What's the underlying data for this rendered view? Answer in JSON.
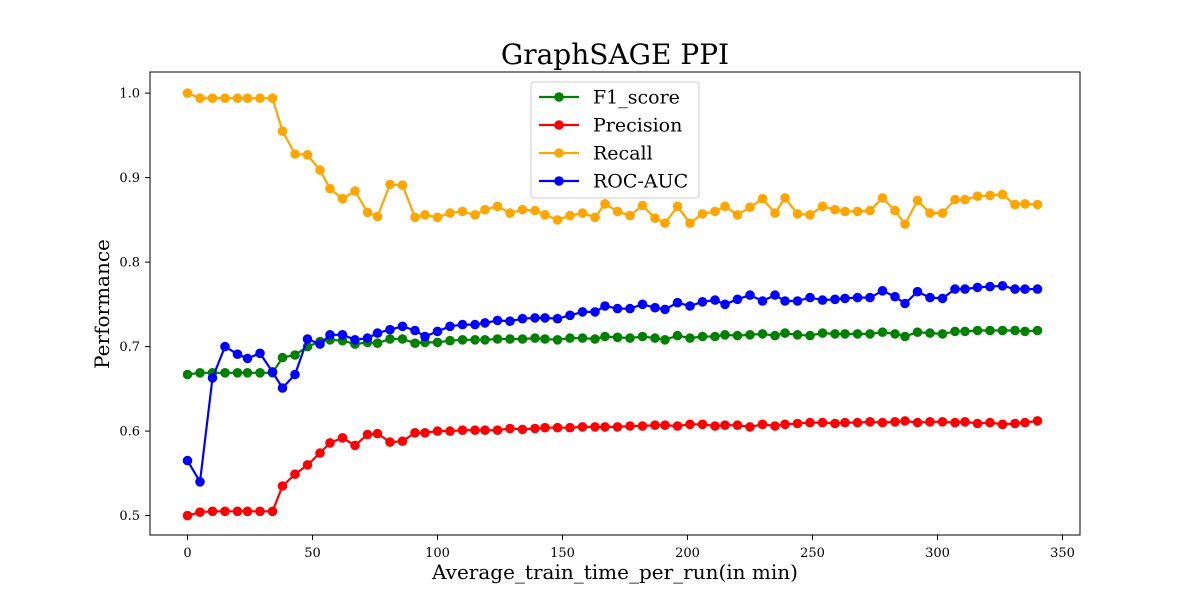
{
  "chart_data": {
    "type": "line",
    "title": "GraphSAGE PPI",
    "xlabel": "Average_train_time_per_run(in min)",
    "ylabel": "Performance",
    "xlim": [
      -15,
      357
    ],
    "ylim": [
      0.477,
      1.025
    ],
    "xticks": [
      0,
      50,
      100,
      150,
      200,
      250,
      300,
      350
    ],
    "xtick_labels": [
      "0",
      "50",
      "100",
      "150",
      "200",
      "250",
      "300",
      "350"
    ],
    "yticks": [
      0.5,
      0.6,
      0.7,
      0.8,
      0.9,
      1.0
    ],
    "ytick_labels": [
      "0.5",
      "0.6",
      "0.7",
      "0.8",
      "0.9",
      "1.0"
    ],
    "grid": false,
    "legend_position": "top-center",
    "x": [
      0,
      5,
      10,
      15,
      20,
      24,
      29,
      34,
      38,
      43,
      48,
      53,
      57,
      62,
      67,
      72,
      76,
      81,
      86,
      91,
      95,
      100,
      105,
      110,
      115,
      119,
      124,
      129,
      134,
      139,
      143,
      148,
      153,
      158,
      163,
      167,
      172,
      177,
      182,
      187,
      191,
      196,
      201,
      206,
      211,
      215,
      220,
      225,
      230,
      235,
      239,
      244,
      249,
      254,
      259,
      263,
      268,
      273,
      278,
      283,
      287,
      292,
      297,
      302,
      307,
      311,
      316,
      321,
      326,
      331,
      335,
      340
    ],
    "series": [
      {
        "name": "F1_score",
        "color": "#008000",
        "values": [
          0.667,
          0.669,
          0.669,
          0.669,
          0.669,
          0.669,
          0.669,
          0.669,
          0.687,
          0.69,
          0.7,
          0.706,
          0.708,
          0.707,
          0.703,
          0.705,
          0.704,
          0.709,
          0.709,
          0.704,
          0.705,
          0.705,
          0.707,
          0.708,
          0.708,
          0.708,
          0.709,
          0.709,
          0.709,
          0.71,
          0.709,
          0.708,
          0.71,
          0.71,
          0.709,
          0.712,
          0.711,
          0.71,
          0.712,
          0.71,
          0.708,
          0.713,
          0.71,
          0.712,
          0.712,
          0.714,
          0.713,
          0.714,
          0.715,
          0.713,
          0.716,
          0.714,
          0.713,
          0.716,
          0.715,
          0.715,
          0.715,
          0.715,
          0.717,
          0.715,
          0.712,
          0.717,
          0.716,
          0.715,
          0.718,
          0.718,
          0.719,
          0.719,
          0.719,
          0.719,
          0.718,
          0.719
        ]
      },
      {
        "name": "Precision",
        "color": "#ff0000",
        "values": [
          0.5,
          0.504,
          0.505,
          0.505,
          0.505,
          0.505,
          0.505,
          0.505,
          0.535,
          0.549,
          0.56,
          0.574,
          0.586,
          0.592,
          0.583,
          0.596,
          0.597,
          0.587,
          0.588,
          0.598,
          0.598,
          0.6,
          0.6,
          0.601,
          0.601,
          0.601,
          0.601,
          0.603,
          0.602,
          0.603,
          0.604,
          0.604,
          0.604,
          0.605,
          0.605,
          0.605,
          0.605,
          0.606,
          0.606,
          0.607,
          0.607,
          0.606,
          0.608,
          0.608,
          0.606,
          0.607,
          0.607,
          0.605,
          0.608,
          0.606,
          0.608,
          0.609,
          0.61,
          0.61,
          0.609,
          0.61,
          0.61,
          0.611,
          0.61,
          0.611,
          0.612,
          0.61,
          0.611,
          0.611,
          0.61,
          0.611,
          0.609,
          0.61,
          0.608,
          0.609,
          0.61,
          0.612
        ]
      },
      {
        "name": "Recall",
        "color": "#ffa500",
        "values": [
          1.0,
          0.994,
          0.994,
          0.994,
          0.994,
          0.994,
          0.994,
          0.994,
          0.955,
          0.928,
          0.927,
          0.909,
          0.887,
          0.875,
          0.884,
          0.859,
          0.854,
          0.892,
          0.891,
          0.853,
          0.856,
          0.853,
          0.858,
          0.86,
          0.856,
          0.862,
          0.866,
          0.858,
          0.862,
          0.861,
          0.856,
          0.85,
          0.855,
          0.858,
          0.853,
          0.869,
          0.86,
          0.855,
          0.867,
          0.852,
          0.846,
          0.866,
          0.846,
          0.857,
          0.86,
          0.866,
          0.856,
          0.865,
          0.875,
          0.858,
          0.876,
          0.857,
          0.856,
          0.866,
          0.862,
          0.86,
          0.86,
          0.861,
          0.876,
          0.861,
          0.845,
          0.873,
          0.858,
          0.858,
          0.874,
          0.874,
          0.878,
          0.879,
          0.88,
          0.868,
          0.869,
          0.868
        ]
      },
      {
        "name": "ROC-AUC",
        "color": "#0000ff",
        "values": [
          0.565,
          0.54,
          0.663,
          0.7,
          0.691,
          0.686,
          0.692,
          0.67,
          0.651,
          0.667,
          0.709,
          0.703,
          0.714,
          0.714,
          0.708,
          0.71,
          0.716,
          0.72,
          0.724,
          0.719,
          0.712,
          0.718,
          0.724,
          0.726,
          0.726,
          0.728,
          0.731,
          0.73,
          0.733,
          0.734,
          0.734,
          0.733,
          0.737,
          0.741,
          0.741,
          0.748,
          0.745,
          0.745,
          0.75,
          0.746,
          0.744,
          0.752,
          0.748,
          0.753,
          0.755,
          0.75,
          0.756,
          0.761,
          0.754,
          0.761,
          0.754,
          0.754,
          0.758,
          0.755,
          0.756,
          0.757,
          0.758,
          0.758,
          0.766,
          0.759,
          0.751,
          0.765,
          0.758,
          0.757,
          0.768,
          0.768,
          0.77,
          0.771,
          0.772,
          0.768,
          0.768,
          0.768
        ]
      }
    ]
  }
}
